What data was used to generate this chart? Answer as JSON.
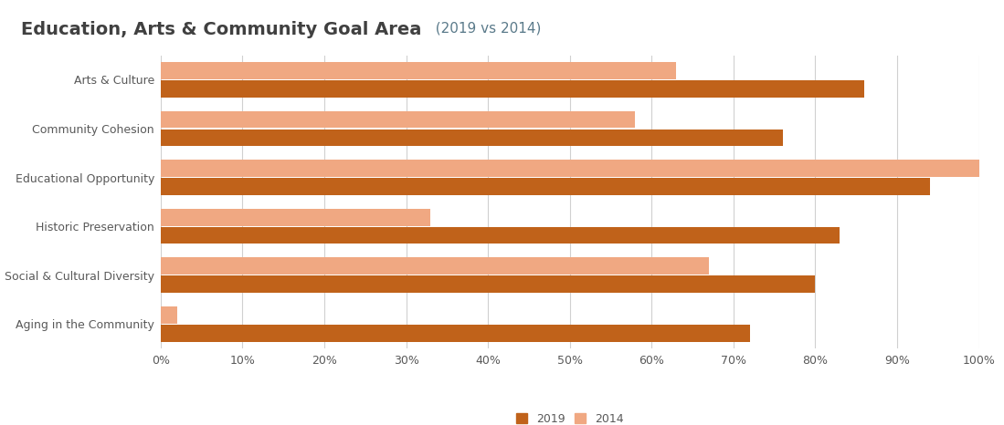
{
  "title_main": "Education, Arts & Community Goal Area",
  "title_sub": "  (2019 vs 2014)",
  "categories": [
    "Arts & Culture",
    "Community Cohesion",
    "Educational Opportunity",
    "Historic Preservation",
    "Social & Cultural Diversity",
    "Aging in the Community"
  ],
  "values_2019": [
    86,
    76,
    94,
    83,
    80,
    72
  ],
  "values_2014": [
    63,
    58,
    100,
    33,
    67,
    2
  ],
  "color_2019": "#C0621A",
  "color_2014": "#F0A882",
  "background_color": "#FFFFFF",
  "gridline_color": "#D0D0D0",
  "text_color": "#595959",
  "title_color_bold": "#404040",
  "title_color_sub": "#5A7A8A",
  "xlim": [
    0,
    100
  ],
  "xtick_labels": [
    "0%",
    "10%",
    "20%",
    "30%",
    "40%",
    "50%",
    "60%",
    "70%",
    "80%",
    "90%",
    "100%"
  ],
  "xtick_values": [
    0,
    10,
    20,
    30,
    40,
    50,
    60,
    70,
    80,
    90,
    100
  ],
  "legend_2019": "2019",
  "legend_2014": "2014"
}
